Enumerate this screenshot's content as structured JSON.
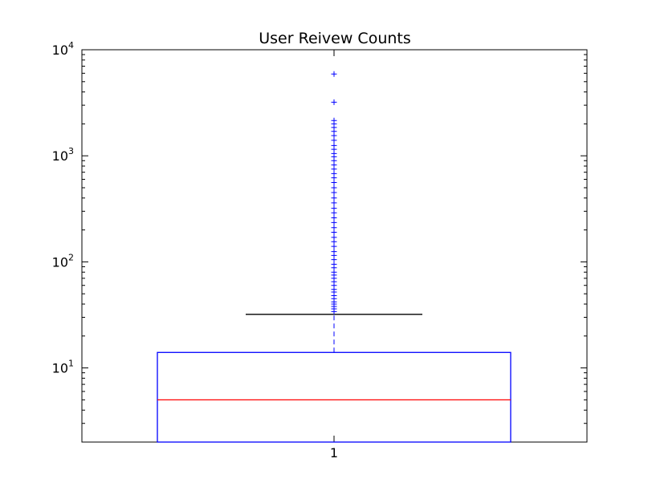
{
  "chart_data": {
    "type": "box",
    "title": "User Reivew Counts",
    "xlabel": "",
    "ylabel": "",
    "y_scale": "log",
    "ylim": [
      2.0,
      10000
    ],
    "y_ticks": [
      {
        "value": 10,
        "base": "10",
        "exp": "1"
      },
      {
        "value": 100,
        "base": "10",
        "exp": "2"
      },
      {
        "value": 1000,
        "base": "10",
        "exp": "3"
      },
      {
        "value": 10000,
        "base": "10",
        "exp": "4"
      }
    ],
    "categories": [
      "1"
    ],
    "box": {
      "q1": 2.0,
      "median": 5,
      "q3": 14,
      "whisker_low": 2.0,
      "whisker_high": 32
    },
    "outliers": [
      34,
      36,
      38,
      40,
      42,
      45,
      48,
      52,
      55,
      60,
      65,
      70,
      75,
      80,
      88,
      95,
      105,
      115,
      125,
      140,
      155,
      170,
      190,
      210,
      235,
      260,
      290,
      320,
      360,
      400,
      450,
      500,
      560,
      620,
      680,
      750,
      820,
      900,
      980,
      1050,
      1150,
      1250,
      1400,
      1550,
      1700,
      1850,
      2000,
      2150,
      3200,
      5900
    ],
    "colors": {
      "box": "#0000ff",
      "median": "#ff0000",
      "whisker_line": "#0000ff",
      "cap": "#000000",
      "outlier": "#0000ff",
      "axes": "#000000"
    }
  }
}
